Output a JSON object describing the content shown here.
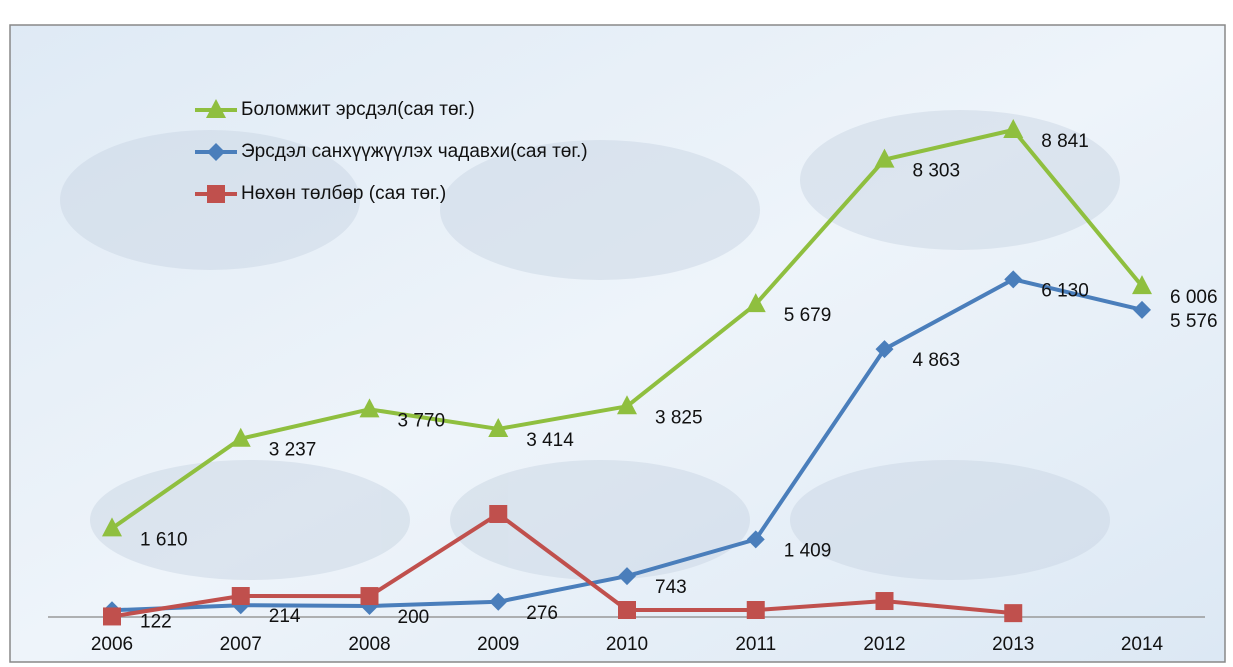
{
  "chart_data": {
    "type": "line",
    "categories": [
      "2006",
      "2007",
      "2008",
      "2009",
      "2010",
      "2011",
      "2012",
      "2013",
      "2014"
    ],
    "series": [
      {
        "name": "Боломжит эрсдэл(сая төг.)",
        "color": "#8fbf3f",
        "marker": "triangle",
        "values": [
          1610,
          3237,
          3770,
          3414,
          3825,
          5679,
          8303,
          8841,
          6006
        ],
        "value_labels": [
          "1 610",
          "3 237",
          "3 770",
          "3 414",
          "3 825",
          "5 679",
          "8 303",
          "8 841",
          "6 006"
        ]
      },
      {
        "name": "Эрсдэл санхүүжүүлэх чадавхи(сая төг.)",
        "color": "#4a7ebb",
        "marker": "diamond",
        "values": [
          122,
          214,
          200,
          276,
          743,
          1409,
          4863,
          6130,
          5576
        ],
        "value_labels": [
          "122",
          "214",
          "200",
          "276",
          "743",
          "1 409",
          "4 863",
          "6 130",
          "5 576"
        ]
      },
      {
        "name": "Нөхөн төлбөр (сая төг.)",
        "color": "#c0504d",
        "marker": "square",
        "values": [
          10,
          381,
          380,
          1870,
          127,
          127,
          290,
          70,
          null
        ]
      }
    ],
    "legend": "top-left"
  }
}
